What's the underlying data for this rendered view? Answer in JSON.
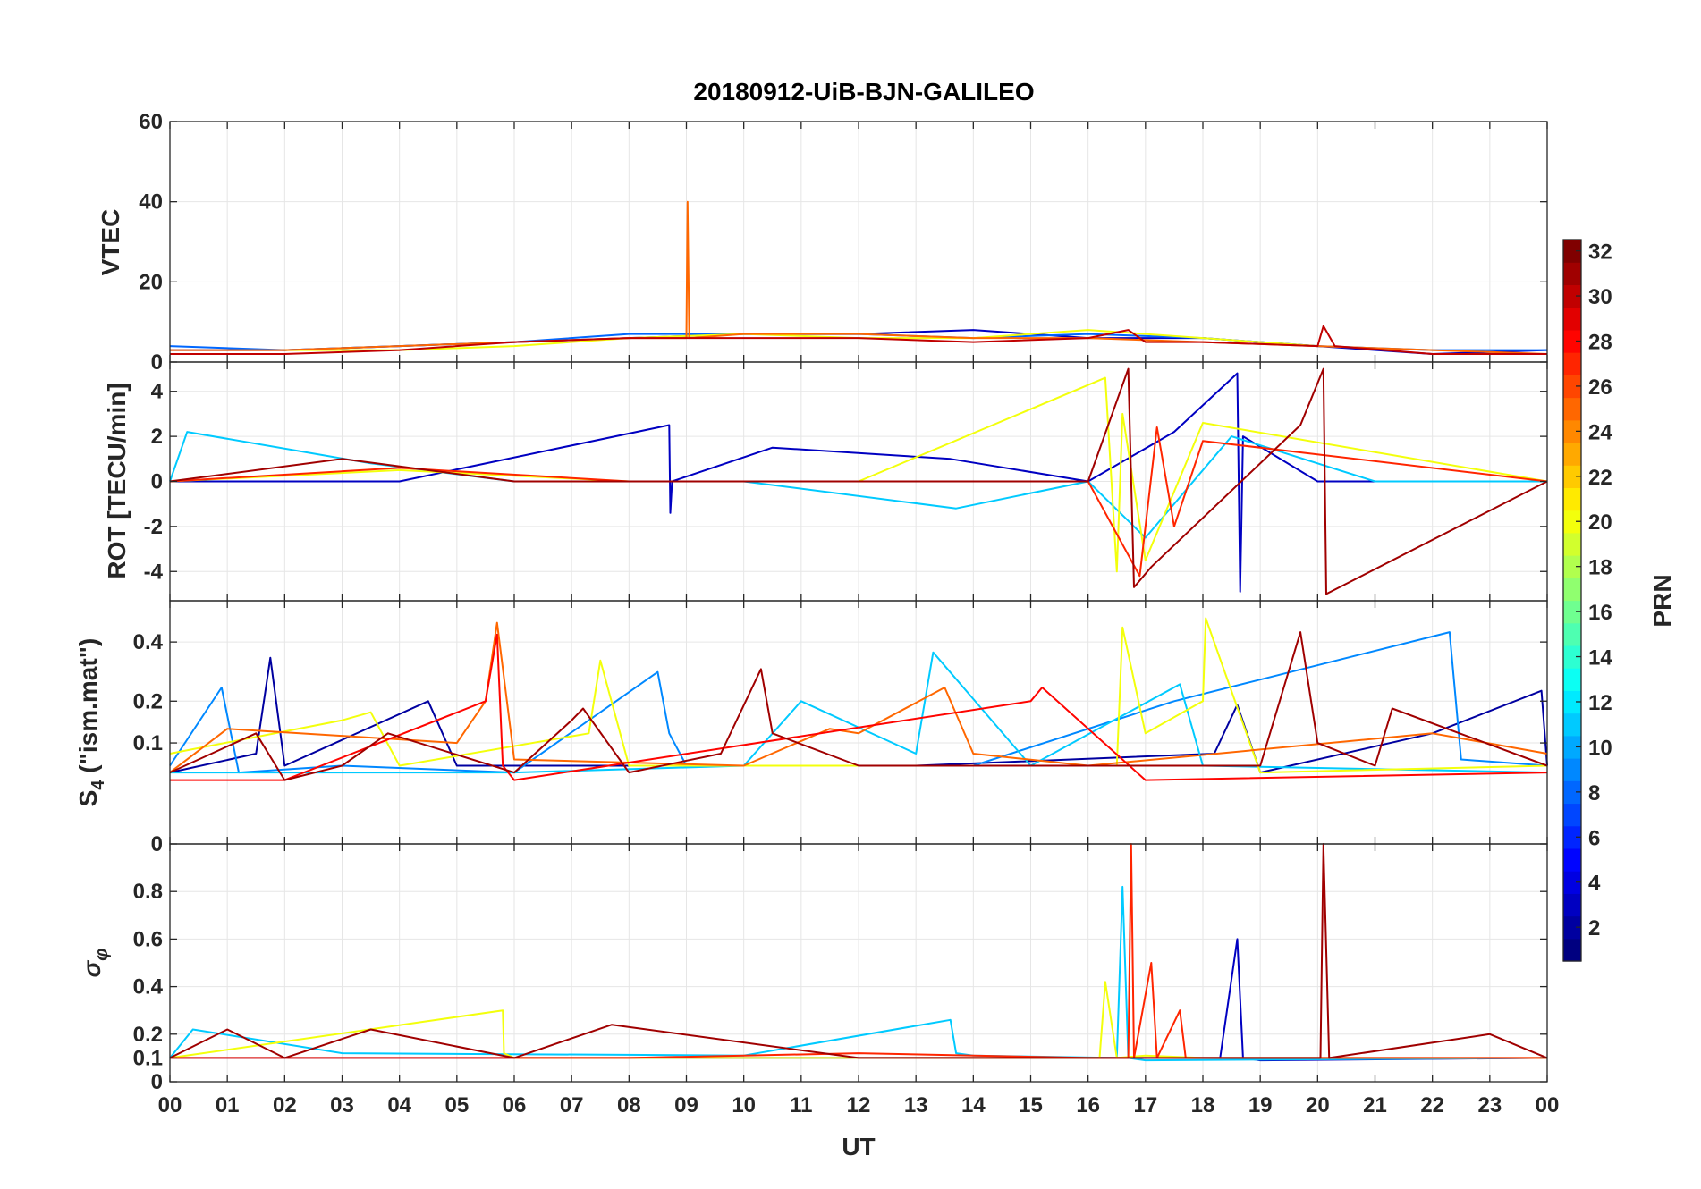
{
  "title": "20180912-UiB-BJN-GALILEO",
  "colorbar": {
    "label": "PRN",
    "range": [
      1,
      32
    ],
    "tick_labels": [
      "2",
      "4",
      "6",
      "8",
      "10",
      "12",
      "14",
      "16",
      "18",
      "20",
      "22",
      "24",
      "26",
      "28",
      "30",
      "32"
    ],
    "tick_values": [
      2,
      4,
      6,
      8,
      10,
      12,
      14,
      16,
      18,
      20,
      22,
      24,
      26,
      28,
      30,
      32
    ],
    "colormap": "jet"
  },
  "chart_data": [
    {
      "type": "line",
      "panel": "VTEC",
      "title": "20180912-UiB-BJN-GALILEO",
      "xlabel": "",
      "ylabel": "VTEC",
      "xlim": [
        0,
        24
      ],
      "ylim": [
        0,
        60
      ],
      "y_tick_values": [
        0,
        20,
        40,
        60
      ],
      "y_tick_labels": [
        "0",
        "20",
        "40",
        "60"
      ],
      "grid": true,
      "series": [
        {
          "prn": 3,
          "x": [
            0,
            2,
            4,
            6,
            8,
            10,
            12,
            14,
            16,
            18,
            20,
            22,
            24
          ],
          "y": [
            3,
            3,
            4,
            5,
            6,
            7,
            7,
            8,
            6,
            6,
            4,
            2,
            3
          ]
        },
        {
          "prn": 8,
          "x": [
            0,
            2,
            4,
            6,
            8,
            10,
            12,
            14,
            16,
            18,
            20,
            22,
            24
          ],
          "y": [
            4,
            3,
            4,
            5,
            7,
            7,
            7,
            6,
            7,
            6,
            4,
            3,
            3
          ]
        },
        {
          "prn": 20,
          "x": [
            2,
            4,
            6,
            8,
            10,
            12,
            14,
            16,
            18,
            20
          ],
          "y": [
            3,
            3,
            4,
            6,
            7,
            6,
            6,
            8,
            6,
            4
          ]
        },
        {
          "prn": 25,
          "x": [
            0,
            2,
            4,
            6,
            8,
            9,
            9.02,
            9.05,
            10,
            12,
            14,
            16,
            18,
            20,
            22,
            24
          ],
          "y": [
            3,
            3,
            4,
            5,
            6,
            6,
            40,
            6,
            7,
            7,
            6,
            6,
            5,
            4,
            3,
            2
          ]
        },
        {
          "prn": 30,
          "x": [
            0,
            2,
            4,
            6,
            8,
            10,
            12,
            14,
            16,
            16.7,
            17,
            18,
            20,
            20.1,
            20.3,
            22,
            24
          ],
          "y": [
            2,
            2,
            3,
            5,
            6,
            6,
            6,
            5,
            6,
            8,
            5,
            5,
            4,
            9,
            4,
            2,
            2
          ]
        }
      ]
    },
    {
      "type": "line",
      "panel": "ROT",
      "xlabel": "",
      "ylabel": "ROT [TECU/min]",
      "xlim": [
        0,
        24
      ],
      "ylim": [
        -5.3,
        5.3
      ],
      "y_tick_values": [
        -4,
        -2,
        0,
        2,
        4
      ],
      "y_tick_labels": [
        "-4",
        "-2",
        "0",
        "2",
        "4"
      ],
      "grid": true,
      "series": [
        {
          "prn": 3,
          "x": [
            0,
            4,
            8.7,
            8.72,
            8.75,
            10.5,
            13.6,
            16,
            17.5,
            18.6,
            18.65,
            18.7,
            20,
            24
          ],
          "y": [
            0,
            0,
            2.5,
            -1.4,
            0,
            1.5,
            1,
            0,
            2.2,
            4.8,
            -4.9,
            2,
            0,
            0
          ]
        },
        {
          "prn": 11,
          "x": [
            0,
            0.3,
            3.5,
            6,
            10,
            13.7,
            16,
            17,
            18.5,
            21,
            24
          ],
          "y": [
            0,
            2.2,
            0.8,
            0,
            0,
            -1.2,
            0,
            -2.5,
            2,
            0,
            0
          ]
        },
        {
          "prn": 20,
          "x": [
            0,
            4,
            8,
            12,
            16.3,
            16.5,
            16.6,
            17,
            18,
            24
          ],
          "y": [
            0,
            0.5,
            0,
            0,
            4.6,
            -4,
            3,
            -3.5,
            2.6,
            0
          ]
        },
        {
          "prn": 27,
          "x": [
            0,
            4,
            8,
            12,
            16,
            16.9,
            17.2,
            17.5,
            18,
            24
          ],
          "y": [
            0,
            0.6,
            0,
            0,
            0,
            -4.2,
            2.4,
            -2,
            1.8,
            0
          ]
        },
        {
          "prn": 31,
          "x": [
            0,
            3,
            6,
            12,
            16,
            16.7,
            16.8,
            17.1,
            19.7,
            20.1,
            20.15,
            24
          ],
          "y": [
            0,
            1,
            0,
            0,
            0,
            5,
            -4.7,
            -3.8,
            2.5,
            5,
            -5,
            0
          ]
        }
      ]
    },
    {
      "type": "line",
      "panel": "S4",
      "xlabel": "",
      "ylabel": "S4 (\"ism.mat\")",
      "ylabel_parts": {
        "main": "S",
        "sub": "4",
        "rest": " (\"ism.mat\")"
      },
      "xlim": [
        0,
        24
      ],
      "ylim": [
        0,
        0.58
      ],
      "y_scale": "sqrt",
      "y_tick_values": [
        0,
        0.1,
        0.2,
        0.4
      ],
      "y_tick_labels": [
        "0",
        "0.1",
        "0.2",
        "0.4"
      ],
      "grid": true,
      "series": [
        {
          "prn": 2,
          "x": [
            0,
            1.5,
            1.75,
            2,
            4.5,
            5,
            7,
            10,
            13,
            18.2,
            18.6,
            19,
            22,
            23.9,
            24
          ],
          "y": [
            0.05,
            0.08,
            0.34,
            0.06,
            0.2,
            0.06,
            0.06,
            0.06,
            0.06,
            0.08,
            0.19,
            0.05,
            0.12,
            0.23,
            0.06
          ]
        },
        {
          "prn": 9,
          "x": [
            0,
            0.9,
            1.2,
            3,
            6,
            8.5,
            8.7,
            9,
            12,
            14,
            17.5,
            22.3,
            22.5,
            24
          ],
          "y": [
            0.06,
            0.24,
            0.05,
            0.06,
            0.05,
            0.29,
            0.12,
            0.06,
            0.06,
            0.06,
            0.2,
            0.44,
            0.07,
            0.06
          ]
        },
        {
          "prn": 11,
          "x": [
            0,
            3,
            6,
            10,
            11,
            13,
            13.3,
            15,
            17.6,
            18,
            24
          ],
          "y": [
            0.05,
            0.05,
            0.05,
            0.06,
            0.2,
            0.08,
            0.36,
            0.06,
            0.25,
            0.06,
            0.05
          ]
        },
        {
          "prn": 20,
          "x": [
            0,
            3,
            3.5,
            4,
            7.3,
            7.5,
            8,
            16.5,
            16.6,
            17,
            18,
            18.05,
            19,
            24
          ],
          "y": [
            0.08,
            0.15,
            0.17,
            0.06,
            0.12,
            0.33,
            0.06,
            0.06,
            0.46,
            0.12,
            0.2,
            0.5,
            0.05,
            0.06
          ]
        },
        {
          "prn": 25,
          "x": [
            0,
            1,
            5,
            5.5,
            5.7,
            6,
            10,
            11.5,
            12,
            13.5,
            14,
            16,
            22,
            24
          ],
          "y": [
            0.05,
            0.13,
            0.1,
            0.2,
            0.48,
            0.07,
            0.06,
            0.13,
            0.12,
            0.24,
            0.08,
            0.06,
            0.12,
            0.08
          ]
        },
        {
          "prn": 28,
          "x": [
            0,
            2,
            5.5,
            5.7,
            5.8,
            6,
            15,
            15.2,
            17,
            24
          ],
          "y": [
            0.04,
            0.04,
            0.2,
            0.43,
            0.06,
            0.04,
            0.2,
            0.24,
            0.04,
            0.05
          ]
        },
        {
          "prn": 31,
          "x": [
            0,
            1.5,
            2,
            3,
            3.8,
            6,
            7,
            7.2,
            8,
            9.6,
            10.3,
            10.5,
            12,
            19,
            19.7,
            20,
            21,
            21.3,
            24
          ],
          "y": [
            0.05,
            0.12,
            0.04,
            0.06,
            0.12,
            0.05,
            0.15,
            0.18,
            0.05,
            0.08,
            0.3,
            0.12,
            0.06,
            0.06,
            0.44,
            0.1,
            0.06,
            0.18,
            0.06
          ]
        }
      ]
    },
    {
      "type": "line",
      "panel": "sigma_phi",
      "xlabel": "UT",
      "ylabel": "σφ",
      "ylabel_parts": {
        "main": "σ",
        "sub": "φ"
      },
      "xlim": [
        0,
        24
      ],
      "ylim": [
        0,
        1
      ],
      "y_tick_values": [
        0,
        0.1,
        0.2,
        0.4,
        0.6,
        0.8
      ],
      "y_tick_labels": [
        "0",
        "0.1",
        "0.2",
        "0.4",
        "0.6",
        "0.8"
      ],
      "x_tick_values": [
        0,
        1,
        2,
        3,
        4,
        5,
        6,
        7,
        8,
        9,
        10,
        11,
        12,
        13,
        14,
        15,
        16,
        17,
        18,
        19,
        20,
        21,
        22,
        23,
        24
      ],
      "x_tick_labels": [
        "00",
        "01",
        "02",
        "03",
        "04",
        "05",
        "06",
        "07",
        "08",
        "09",
        "10",
        "11",
        "12",
        "13",
        "14",
        "15",
        "16",
        "17",
        "18",
        "19",
        "20",
        "21",
        "22",
        "23",
        "00"
      ],
      "grid": true,
      "series": [
        {
          "prn": 3,
          "x": [
            0,
            6,
            12,
            17,
            18.3,
            18.6,
            18.7,
            19,
            24
          ],
          "y": [
            0.1,
            0.1,
            0.1,
            0.1,
            0.1,
            0.6,
            0.1,
            0.09,
            0.1
          ]
        },
        {
          "prn": 11,
          "x": [
            0,
            0.4,
            3,
            10,
            13.6,
            13.7,
            14,
            16.5,
            16.6,
            16.7,
            17,
            24
          ],
          "y": [
            0.1,
            0.22,
            0.12,
            0.11,
            0.26,
            0.12,
            0.11,
            0.1,
            0.82,
            0.1,
            0.09,
            0.1
          ]
        },
        {
          "prn": 20,
          "x": [
            0,
            5.8,
            5.82,
            6,
            12,
            16.2,
            16.3,
            16.5,
            17,
            18,
            24
          ],
          "y": [
            0.1,
            0.3,
            0.12,
            0.1,
            0.1,
            0.1,
            0.42,
            0.1,
            0.11,
            0.1,
            0.1
          ]
        },
        {
          "prn": 27,
          "x": [
            0,
            8,
            12,
            16,
            16.7,
            16.75,
            16.8,
            17.1,
            17.2,
            17.6,
            17.7,
            24
          ],
          "y": [
            0.1,
            0.1,
            0.12,
            0.1,
            0.1,
            1,
            0.1,
            0.5,
            0.1,
            0.3,
            0.1,
            0.1
          ]
        },
        {
          "prn": 31,
          "x": [
            0,
            1,
            2,
            3.5,
            6,
            7.7,
            12,
            16,
            20.05,
            20.1,
            20.2,
            23,
            24
          ],
          "y": [
            0.1,
            0.22,
            0.1,
            0.22,
            0.1,
            0.24,
            0.1,
            0.1,
            0.1,
            1,
            0.1,
            0.2,
            0.1
          ]
        }
      ]
    }
  ]
}
